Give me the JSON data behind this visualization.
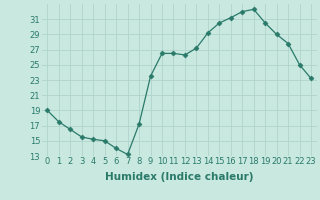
{
  "x": [
    0,
    1,
    2,
    3,
    4,
    5,
    6,
    7,
    8,
    9,
    10,
    11,
    12,
    13,
    14,
    15,
    16,
    17,
    18,
    19,
    20,
    21,
    22,
    23
  ],
  "y": [
    19,
    17.5,
    16.5,
    15.5,
    15.2,
    15.0,
    14.0,
    13.2,
    17.2,
    23.5,
    26.5,
    26.5,
    26.3,
    27.2,
    29.2,
    30.5,
    31.2,
    32.0,
    32.3,
    30.5,
    29.0,
    27.8,
    25.0,
    23.2
  ],
  "line_color": "#2a7a6a",
  "marker": "D",
  "marker_size": 2.5,
  "bg_color": "#c8e8e0",
  "grid_color": "#b0d4cc",
  "xlabel": "Humidex (Indice chaleur)",
  "ylim": [
    13,
    33
  ],
  "xlim": [
    -0.5,
    23.5
  ],
  "yticks": [
    13,
    15,
    17,
    19,
    21,
    23,
    25,
    27,
    29,
    31
  ],
  "xticks": [
    0,
    1,
    2,
    3,
    4,
    5,
    6,
    7,
    8,
    9,
    10,
    11,
    12,
    13,
    14,
    15,
    16,
    17,
    18,
    19,
    20,
    21,
    22,
    23
  ],
  "tick_fontsize": 6,
  "xlabel_fontsize": 7.5
}
